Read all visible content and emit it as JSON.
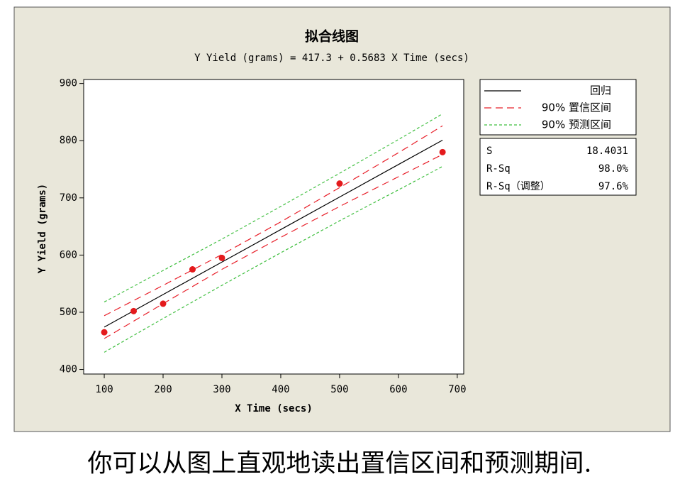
{
  "chart_data": {
    "type": "line",
    "title": "拟合线图",
    "subtitle": "Y Yield (grams) =  417.3 + 0.5683 X Time (secs)",
    "x_label": "X Time (secs)",
    "y_label": "Y Yield (grams)",
    "xlim": [
      65,
      711
    ],
    "ylim": [
      392,
      907
    ],
    "xticks": [
      100,
      200,
      300,
      400,
      500,
      600,
      700
    ],
    "yticks": [
      400,
      500,
      600,
      700,
      800,
      900
    ],
    "series": [
      {
        "name": "回归",
        "color": "#000000",
        "dash": "none",
        "x": [
          100,
          200,
          300,
          400,
          500,
          600,
          675
        ],
        "values": [
          474.1,
          531.0,
          587.8,
          644.6,
          701.5,
          758.3,
          800.9
        ]
      },
      {
        "name": "90% 置信区间",
        "color": "#e8202a",
        "dash": "10 6",
        "x": [
          100,
          200,
          300,
          400,
          500,
          600,
          675
        ],
        "values": [
          494,
          547,
          601,
          658,
          718,
          779,
          826
        ]
      },
      {
        "x": [
          100,
          200,
          300,
          400,
          500,
          600,
          675
        ],
        "color": "#e8202a",
        "dash": "10 6",
        "values": [
          454,
          515,
          575,
          631,
          685,
          737,
          776
        ]
      },
      {
        "name": "90% 预测区间",
        "color": "#3fbf3f",
        "dash": "4 3",
        "x": [
          100,
          200,
          300,
          400,
          500,
          600,
          675
        ],
        "values": [
          518,
          573,
          628,
          685,
          743,
          802,
          847
        ]
      },
      {
        "x": [
          100,
          200,
          300,
          400,
          500,
          600,
          675
        ],
        "color": "#3fbf3f",
        "dash": "4 3",
        "values": [
          430,
          489,
          547,
          604,
          660,
          714,
          755
        ]
      }
    ],
    "points": {
      "color": "#e41a1c",
      "x": [
        100,
        150,
        200,
        250,
        300,
        500,
        675
      ],
      "values": [
        465,
        502,
        515,
        575,
        595,
        725,
        780
      ]
    },
    "stats": [
      {
        "name": "S",
        "value": 18.4031
      },
      {
        "name": "R-Sq",
        "value": 98.0,
        "value_label": "98.0%"
      },
      {
        "name": "R-Sq（调整）",
        "value": 97.6,
        "value_label": "97.6%"
      }
    ],
    "caption": "你可以从图上直观地读出置信区间和预测期间."
  }
}
